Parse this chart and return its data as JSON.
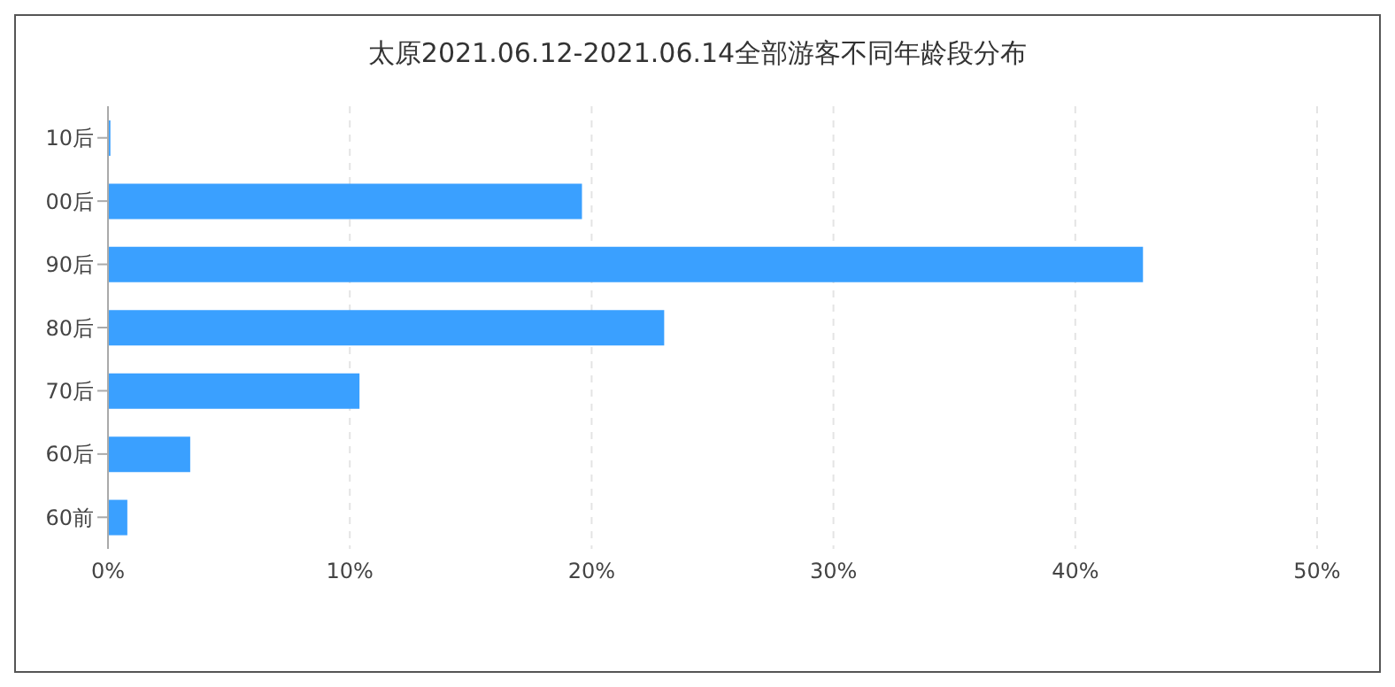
{
  "chart_data": {
    "type": "bar",
    "orientation": "horizontal",
    "title": "太原2021.06.12-2021.06.14全部游客不同年龄段分布",
    "categories": [
      "10后",
      "00后",
      "90后",
      "80后",
      "70后",
      "60后",
      "60前"
    ],
    "values": [
      0.1,
      19.6,
      42.8,
      23.0,
      10.4,
      3.4,
      0.8
    ],
    "color": "#3aa0ff",
    "xlim": [
      0,
      50
    ],
    "xticks": [
      {
        "value": 0,
        "label": "0%"
      },
      {
        "value": 10,
        "label": "10%"
      },
      {
        "value": 20,
        "label": "20%"
      },
      {
        "value": 30,
        "label": "30%"
      },
      {
        "value": 40,
        "label": "40%"
      },
      {
        "value": 50,
        "label": "50%"
      }
    ],
    "grid": "x"
  }
}
